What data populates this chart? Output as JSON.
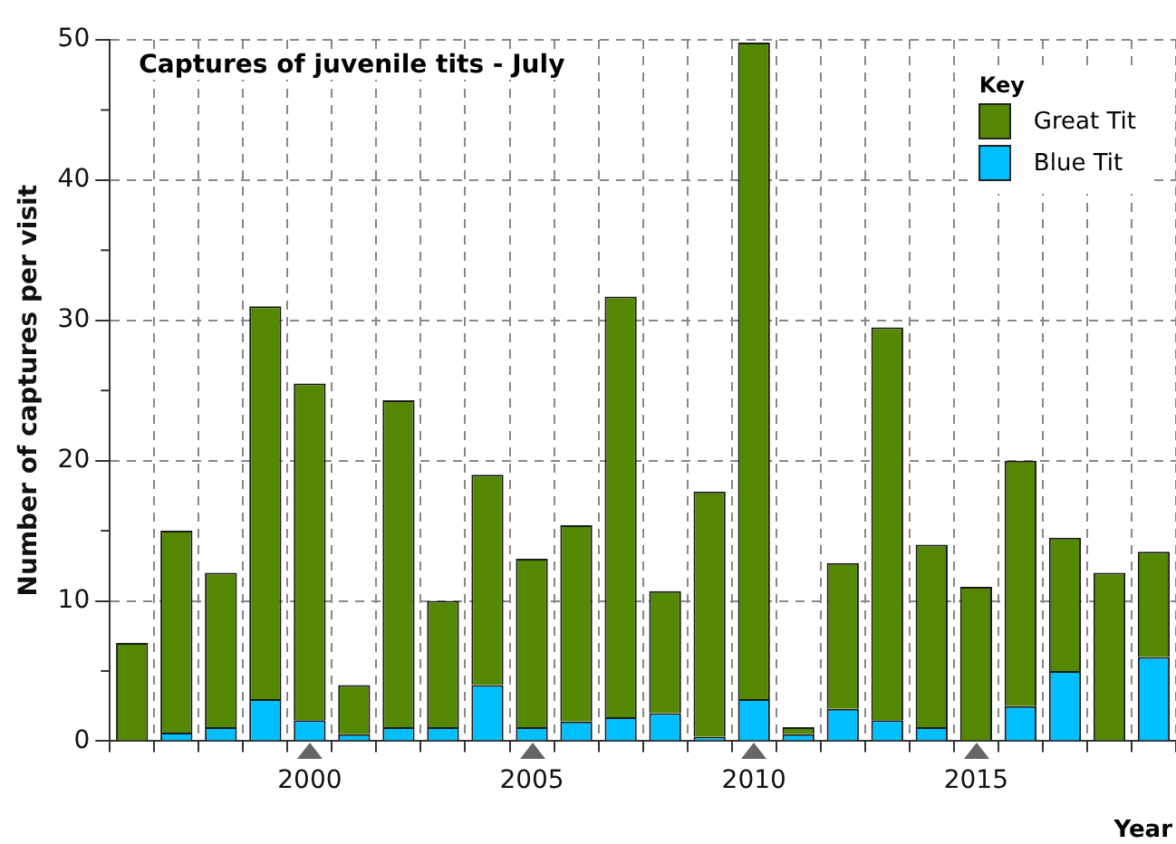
{
  "chart_data": {
    "type": "bar",
    "title": "Captures of juvenile tits - July",
    "xlabel": "Year",
    "ylabel": "Number of captures per visit",
    "legend_title": "Key",
    "categories": [
      null,
      null,
      null,
      null,
      "2000",
      null,
      null,
      null,
      null,
      "2005",
      null,
      null,
      null,
      null,
      "2010",
      null,
      null,
      null,
      null,
      "2015",
      null,
      null,
      null,
      null
    ],
    "stacked": true,
    "series": [
      {
        "name": "Blue Tit",
        "color": "#00bfff",
        "values": [
          0,
          0.6,
          1,
          3,
          1.5,
          0.5,
          1,
          1,
          4,
          1,
          1.4,
          1.7,
          2,
          0.3,
          3,
          0.5,
          2.3,
          1.5,
          1,
          0,
          2.5,
          5,
          0,
          6
        ]
      },
      {
        "name": "Great Tit",
        "color": "#548802",
        "values": [
          7,
          14.4,
          11,
          28,
          24,
          3.5,
          23.3,
          9,
          15,
          12,
          14,
          30,
          8.7,
          17.5,
          46.8,
          0.5,
          10.4,
          28,
          13,
          11,
          17.5,
          9.5,
          12,
          7.5
        ]
      }
    ],
    "ylim": [
      0,
      50
    ],
    "yticks": [
      0,
      10,
      20,
      30,
      40,
      50
    ],
    "grid": true,
    "legend": "top right"
  }
}
